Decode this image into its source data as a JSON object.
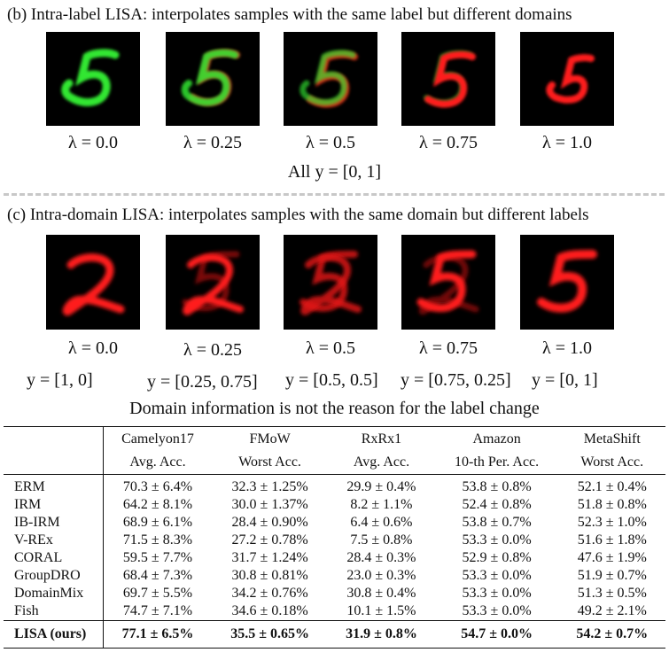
{
  "panel_b": {
    "title": "(b) Intra-label LISA: interpolates samples with the same label but different domains",
    "lambdas": [
      "λ = 0.0",
      "λ = 0.25",
      "λ = 0.5",
      "λ = 0.75",
      "λ = 1.0"
    ],
    "label_note": "All y = [0, 1]"
  },
  "panel_c": {
    "title": "(c) Intra-domain LISA: interpolates samples with the same domain but different labels",
    "lambdas": [
      "λ = 0.0",
      "λ = 0.25",
      "λ = 0.5",
      "λ = 0.75",
      "λ = 1.0"
    ],
    "labels": [
      "y = [1, 0]",
      "y = [0.25, 0.75]",
      "y = [0.5, 0.5]",
      "y = [0.75, 0.25]",
      "y = [0, 1]"
    ],
    "note": "Domain information is not the reason for the label change"
  },
  "table": {
    "datasets": [
      "Camelyon17",
      "FMoW",
      "RxRx1",
      "Amazon",
      "MetaShift"
    ],
    "metrics": [
      "Avg. Acc.",
      "Worst Acc.",
      "Avg. Acc.",
      "10-th Per. Acc.",
      "Worst Acc."
    ],
    "rows": [
      {
        "method": "ERM",
        "values": [
          "70.3 ± 6.4%",
          "32.3 ± 1.25%",
          "29.9 ± 0.4%",
          "53.8 ± 0.8%",
          "52.1 ± 0.4%"
        ]
      },
      {
        "method": "IRM",
        "values": [
          "64.2 ± 8.1%",
          "30.0 ± 1.37%",
          "8.2 ± 1.1%",
          "52.4 ± 0.8%",
          "51.8 ± 0.8%"
        ]
      },
      {
        "method": "IB-IRM",
        "values": [
          "68.9 ± 6.1%",
          "28.4 ± 0.90%",
          "6.4 ± 0.6%",
          "53.8 ± 0.7%",
          "52.3 ± 1.0%"
        ]
      },
      {
        "method": "V-REx",
        "values": [
          "71.5 ± 8.3%",
          "27.2 ± 0.78%",
          "7.5 ± 0.8%",
          "53.3 ± 0.0%",
          "51.6 ± 1.8%"
        ]
      },
      {
        "method": "CORAL",
        "values": [
          "59.5 ± 7.7%",
          "31.7 ± 1.24%",
          "28.4 ± 0.3%",
          "52.9 ± 0.8%",
          "47.6 ± 1.9%"
        ]
      },
      {
        "method": "GroupDRO",
        "values": [
          "68.4 ± 7.3%",
          "30.8 ± 0.81%",
          "23.0 ± 0.3%",
          "53.3 ± 0.0%",
          "51.9 ± 0.7%"
        ]
      },
      {
        "method": "DomainMix",
        "values": [
          "69.7 ± 5.5%",
          "34.2 ± 0.76%",
          "30.8 ± 0.4%",
          "53.3 ± 0.0%",
          "51.3 ± 0.5%"
        ]
      },
      {
        "method": "Fish",
        "values": [
          "74.7 ± 7.1%",
          "34.6 ± 0.18%",
          "10.1 ± 1.5%",
          "53.3 ± 0.0%",
          "49.2 ± 2.1%"
        ]
      }
    ],
    "ours": {
      "method": "LISA (ours)",
      "values": [
        "77.1 ± 6.5%",
        "35.5 ± 0.65%",
        "31.9 ± 0.8%",
        "54.7 ± 0.0%",
        "54.2 ± 0.7%"
      ]
    }
  },
  "colors": {
    "green": "#32e632",
    "red": "#ff1e1e",
    "background": "#000000"
  }
}
